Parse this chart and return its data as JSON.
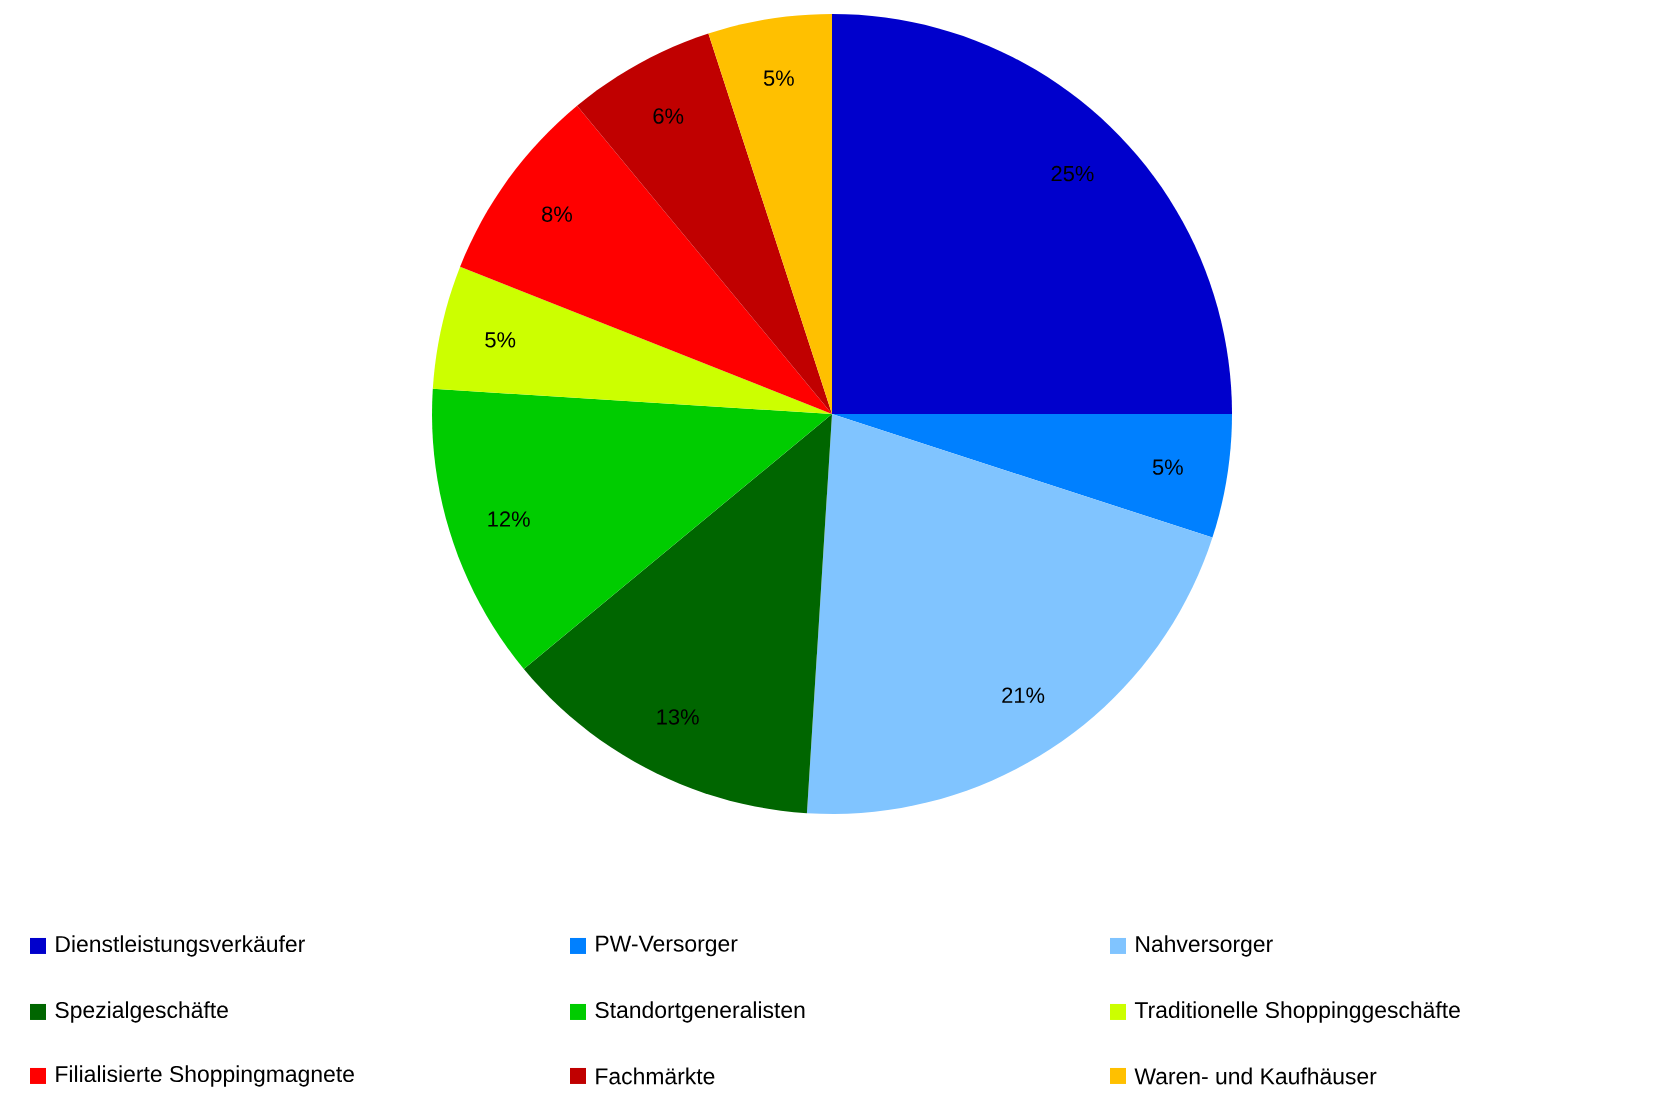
{
  "chart_data": {
    "type": "pie",
    "categories": [
      "Dienstleistungsverkäufer",
      "PW-Versorger",
      "Nahversorger",
      "Spezialgeschäfte",
      "Standortgeneralisten",
      "Traditionelle Shoppinggeschäfte",
      "Filialisierte Shoppingmagnete",
      "Fachmärkte",
      "Waren- und Kaufhäuser"
    ],
    "values": [
      25,
      5,
      21,
      13,
      12,
      5,
      8,
      6,
      5
    ],
    "value_labels": [
      "25%",
      "5%",
      "21%",
      "13%",
      "12%",
      "5%",
      "8%",
      "6%",
      "5%"
    ],
    "colors": [
      "#0000cc",
      "#0080ff",
      "#80c4ff",
      "#006600",
      "#00cc00",
      "#ccff00",
      "#ff0000",
      "#c00000",
      "#ffc000"
    ],
    "legend": "bottom"
  }
}
